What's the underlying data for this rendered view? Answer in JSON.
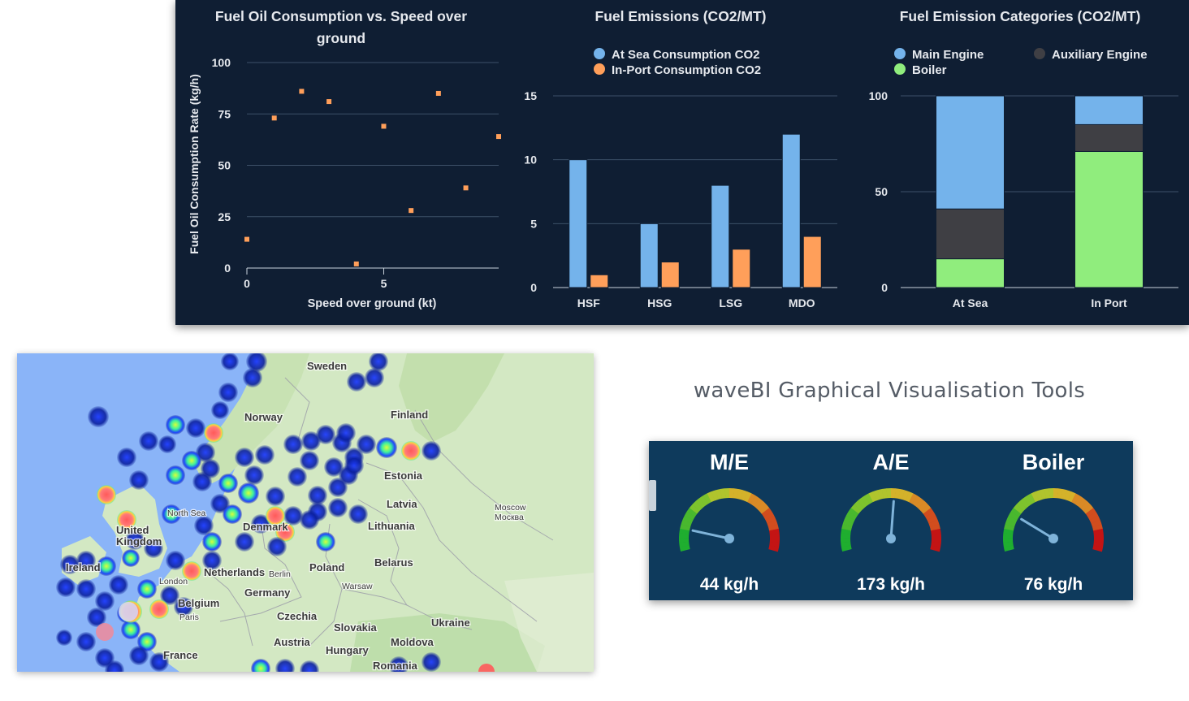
{
  "charts": {
    "scatter": {
      "title_line1": "Fuel Oil Consumption vs. Speed over",
      "title_line2": "ground",
      "ylabel": "Fuel Oil Consumption Rate (kg/h)",
      "xlabel": "Speed over ground (kt)"
    },
    "emissions": {
      "title": "Fuel Emissions (CO2/MT)"
    },
    "categories": {
      "title": "Fuel Emission Categories (CO2/MT)"
    }
  },
  "chart_data": [
    {
      "type": "scatter",
      "title": "Fuel Oil Consumption vs. Speed over ground",
      "xlabel": "Speed over ground (kt)",
      "ylabel": "Fuel Oil Consumption Rate (kg/h)",
      "xlim": [
        0,
        9.2
      ],
      "ylim": [
        0,
        100
      ],
      "xticks": [
        "0",
        "5"
      ],
      "yticks": [
        "0",
        "25",
        "50",
        "75",
        "100"
      ],
      "marker_color": "#ff9f5a",
      "points": [
        [
          0,
          14
        ],
        [
          1,
          73
        ],
        [
          2,
          86
        ],
        [
          3,
          81
        ],
        [
          4,
          2
        ],
        [
          5,
          69
        ],
        [
          6,
          28
        ],
        [
          7,
          85
        ],
        [
          8,
          39
        ],
        [
          9.2,
          64
        ]
      ]
    },
    {
      "type": "bar",
      "title": "Fuel Emissions (CO2/MT)",
      "categories": [
        "HSF",
        "HSG",
        "LSG",
        "MDO"
      ],
      "series": [
        {
          "name": "At Sea Consumption CO2",
          "color": "#74b3eb",
          "values": [
            10,
            5,
            8,
            12
          ]
        },
        {
          "name": "In-Port Consumption CO2",
          "color": "#ff9f5a",
          "values": [
            1,
            2,
            3,
            4
          ]
        }
      ],
      "ylim": [
        0,
        15
      ],
      "yticks": [
        "0",
        "5",
        "10",
        "15"
      ],
      "legend": "top"
    },
    {
      "type": "bar",
      "stacked": true,
      "title": "Fuel Emission Categories (CO2/MT)",
      "categories": [
        "At Sea",
        "In Port"
      ],
      "series": [
        {
          "name": "Main Engine",
          "color": "#74b3eb",
          "values": [
            59,
            15
          ]
        },
        {
          "name": "Auxiliary Engine",
          "color": "#3f3f44",
          "values": [
            26,
            14
          ]
        },
        {
          "name": "Boiler",
          "color": "#90ed7d",
          "values": [
            15,
            71
          ]
        }
      ],
      "ylim": [
        0,
        100
      ],
      "yticks": [
        "0",
        "50",
        "100"
      ],
      "legend": "top"
    }
  ],
  "map": {
    "labels": [
      {
        "text": "Sweden",
        "size": "md"
      },
      {
        "text": "Norway",
        "size": "md"
      },
      {
        "text": "Finland",
        "size": "md"
      },
      {
        "text": "Estonia",
        "size": "md"
      },
      {
        "text": "Latvia",
        "size": "md"
      },
      {
        "text": "Lithuania",
        "size": "md"
      },
      {
        "text": "Moscow",
        "size": "sm"
      },
      {
        "text": "Москва",
        "size": "sm"
      },
      {
        "text": "North Sea",
        "size": "sm"
      },
      {
        "text": "Denmark",
        "size": "md"
      },
      {
        "text": "United",
        "size": "md"
      },
      {
        "text": "Kingdom",
        "size": "md"
      },
      {
        "text": "Ireland",
        "size": "md"
      },
      {
        "text": "London",
        "size": "sm"
      },
      {
        "text": "Netherlands",
        "size": "md"
      },
      {
        "text": "Berlin",
        "size": "sm"
      },
      {
        "text": "Poland",
        "size": "md"
      },
      {
        "text": "Warsaw",
        "size": "sm"
      },
      {
        "text": "Belarus",
        "size": "md"
      },
      {
        "text": "Germany",
        "size": "md"
      },
      {
        "text": "Belgium",
        "size": "md"
      },
      {
        "text": "Paris",
        "size": "sm"
      },
      {
        "text": "Czechia",
        "size": "md"
      },
      {
        "text": "Slovakia",
        "size": "md"
      },
      {
        "text": "Ukraine",
        "size": "md"
      },
      {
        "text": "France",
        "size": "md"
      },
      {
        "text": "Austria",
        "size": "md"
      },
      {
        "text": "Hungary",
        "size": "md"
      },
      {
        "text": "Moldova",
        "size": "md"
      },
      {
        "text": "Romania",
        "size": "md"
      }
    ],
    "colors": {
      "sea": "#8ab4f8",
      "land": "#d3e8c3",
      "land_dark": "#b9dba5",
      "border": "#9a9aa8"
    }
  },
  "tagline": "waveBI Graphical Visualisation Tools",
  "gauges": [
    {
      "title": "M/E",
      "value_label": "44 kg/h",
      "level": 0.13
    },
    {
      "title": "A/E",
      "value_label": "173 kg/h",
      "level": 0.52
    },
    {
      "title": "Boiler",
      "value_label": "76 kg/h",
      "level": 0.22
    }
  ]
}
